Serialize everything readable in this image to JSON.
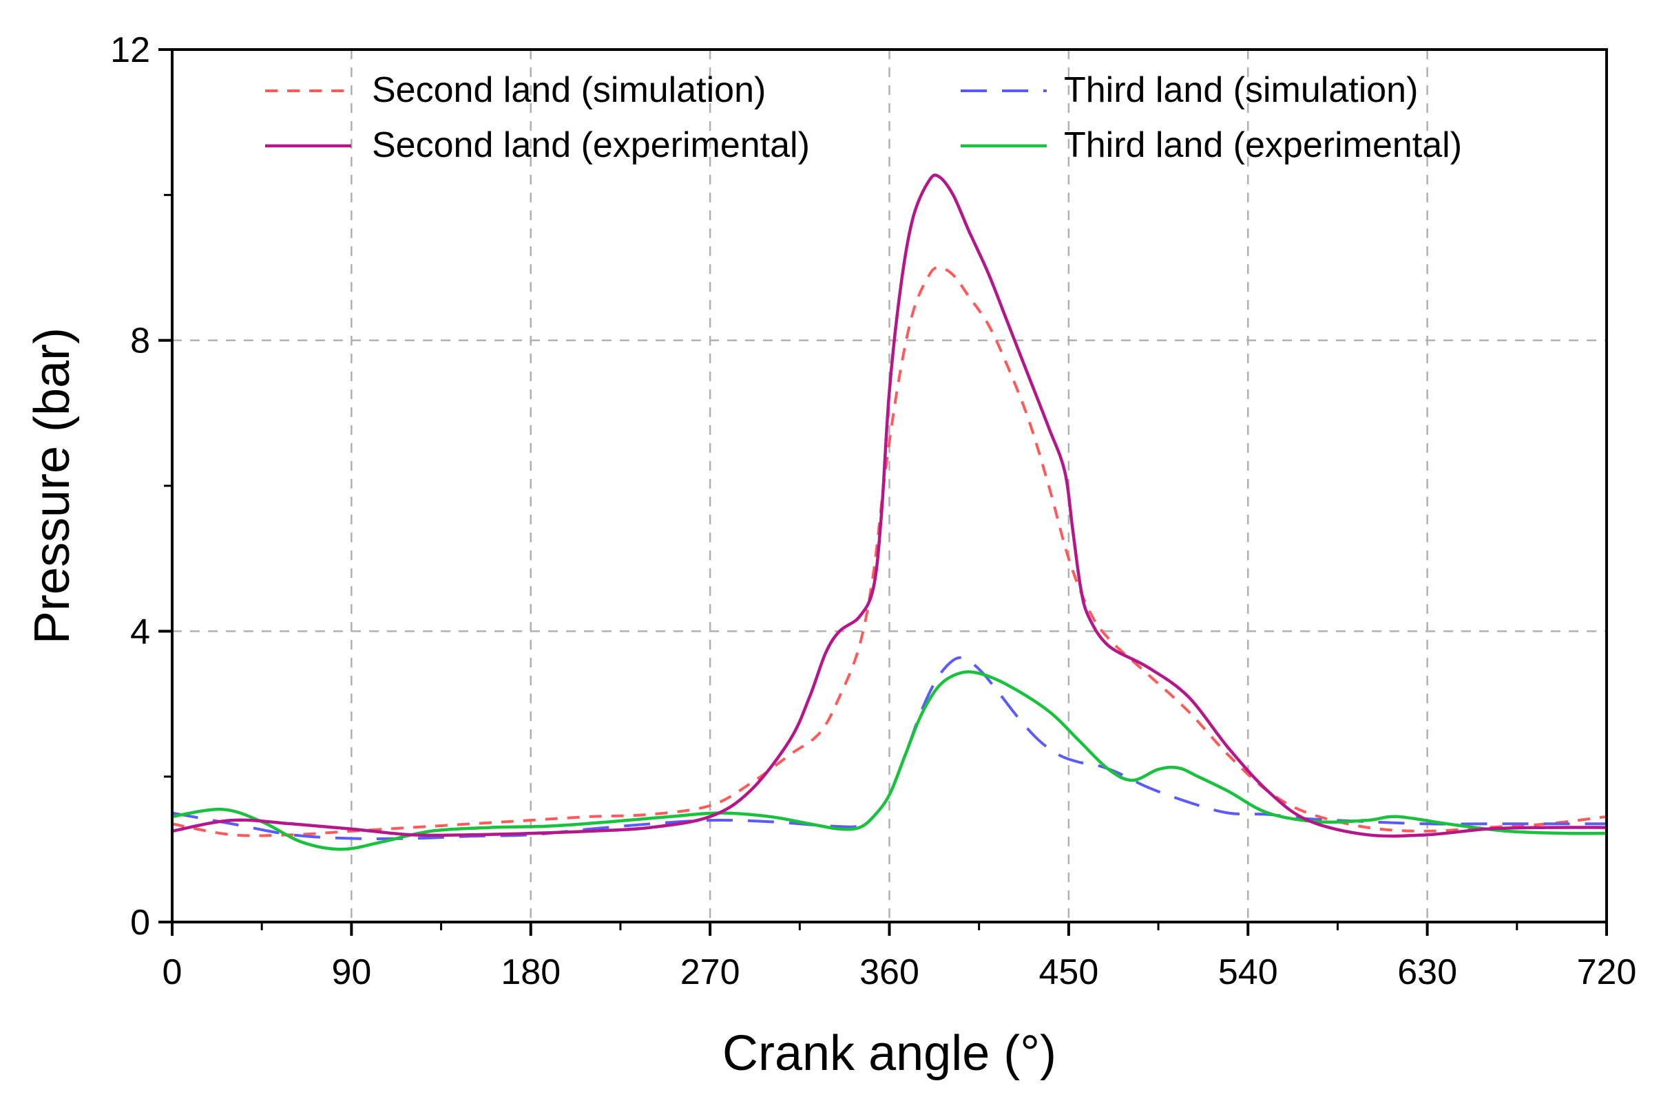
{
  "chart_data": {
    "type": "line",
    "title": "",
    "xlabel": "Crank angle (°)",
    "ylabel": "Pressure (bar)",
    "xlim": [
      0,
      720
    ],
    "ylim": [
      0,
      12
    ],
    "xticks": [
      0,
      90,
      180,
      270,
      360,
      450,
      540,
      630,
      720
    ],
    "xtick_labels": [
      "0",
      "90",
      "180",
      "270",
      "360",
      "450",
      "540",
      "630",
      "720"
    ],
    "yticks": [
      0,
      4,
      8,
      12
    ],
    "ytick_labels": [
      "0",
      "4",
      "8",
      "12"
    ],
    "grid": true,
    "legend_position": "top",
    "series": [
      {
        "name": "Second land (simulation)",
        "color": "#ff5a5a",
        "style": "dotted",
        "x": [
          0,
          30,
          60,
          90,
          120,
          150,
          180,
          210,
          240,
          270,
          290,
          310,
          325,
          335,
          345,
          352,
          358,
          365,
          372,
          380,
          385,
          392,
          400,
          410,
          420,
          430,
          440,
          450,
          460,
          470,
          490,
          510,
          530,
          550,
          570,
          600,
          630,
          660,
          690,
          720
        ],
        "y": [
          1.35,
          1.2,
          1.2,
          1.25,
          1.3,
          1.35,
          1.4,
          1.45,
          1.48,
          1.6,
          1.9,
          2.3,
          2.6,
          3.1,
          3.8,
          4.8,
          6.2,
          7.5,
          8.4,
          8.9,
          9.0,
          8.9,
          8.6,
          8.2,
          7.6,
          6.9,
          6.0,
          5.0,
          4.3,
          3.9,
          3.4,
          2.9,
          2.3,
          1.8,
          1.5,
          1.3,
          1.25,
          1.3,
          1.35,
          1.45
        ]
      },
      {
        "name": "Second land (experimental)",
        "color": "#b5168a",
        "style": "solid",
        "x": [
          0,
          30,
          60,
          90,
          120,
          150,
          180,
          210,
          240,
          270,
          290,
          310,
          320,
          328,
          335,
          345,
          352,
          356,
          360,
          366,
          372,
          380,
          385,
          392,
          400,
          410,
          420,
          430,
          440,
          448,
          452,
          456,
          460,
          470,
          490,
          510,
          530,
          550,
          570,
          600,
          630,
          660,
          690,
          720
        ],
        "y": [
          1.25,
          1.4,
          1.35,
          1.28,
          1.2,
          1.2,
          1.22,
          1.25,
          1.3,
          1.45,
          1.8,
          2.5,
          3.1,
          3.7,
          4.0,
          4.2,
          4.6,
          5.6,
          7.3,
          8.8,
          9.7,
          10.2,
          10.25,
          10.0,
          9.5,
          8.9,
          8.2,
          7.5,
          6.8,
          6.2,
          5.4,
          4.6,
          4.2,
          3.8,
          3.5,
          3.1,
          2.4,
          1.8,
          1.4,
          1.2,
          1.2,
          1.28,
          1.3,
          1.3
        ]
      },
      {
        "name": "Third land (simulation)",
        "color": "#5a5aff",
        "style": "dashed",
        "x": [
          0,
          30,
          60,
          90,
          120,
          150,
          180,
          210,
          240,
          270,
          300,
          330,
          345,
          352,
          360,
          368,
          376,
          384,
          392,
          398,
          406,
          415,
          425,
          435,
          445,
          455,
          465,
          475,
          490,
          510,
          530,
          550,
          570,
          600,
          630,
          660,
          690,
          720
        ],
        "y": [
          1.5,
          1.35,
          1.2,
          1.15,
          1.15,
          1.18,
          1.2,
          1.28,
          1.35,
          1.4,
          1.38,
          1.32,
          1.32,
          1.45,
          1.75,
          2.3,
          2.9,
          3.35,
          3.6,
          3.62,
          3.45,
          3.15,
          2.8,
          2.5,
          2.3,
          2.2,
          2.15,
          2.05,
          1.85,
          1.65,
          1.5,
          1.48,
          1.42,
          1.38,
          1.35,
          1.35,
          1.35,
          1.35
        ]
      },
      {
        "name": "Third land (experimental)",
        "color": "#18c23c",
        "style": "solid",
        "x": [
          0,
          25,
          45,
          65,
          85,
          105,
          130,
          160,
          190,
          220,
          250,
          275,
          300,
          320,
          335,
          345,
          352,
          360,
          368,
          376,
          385,
          395,
          405,
          420,
          440,
          455,
          470,
          482,
          495,
          505,
          515,
          530,
          550,
          575,
          600,
          615,
          640,
          670,
          700,
          720
        ],
        "y": [
          1.45,
          1.55,
          1.38,
          1.1,
          1.0,
          1.1,
          1.25,
          1.3,
          1.32,
          1.38,
          1.45,
          1.5,
          1.45,
          1.35,
          1.28,
          1.3,
          1.45,
          1.75,
          2.3,
          2.85,
          3.25,
          3.42,
          3.42,
          3.25,
          2.9,
          2.5,
          2.1,
          1.95,
          2.1,
          2.12,
          2.0,
          1.8,
          1.5,
          1.38,
          1.4,
          1.45,
          1.35,
          1.25,
          1.22,
          1.22
        ]
      }
    ]
  }
}
